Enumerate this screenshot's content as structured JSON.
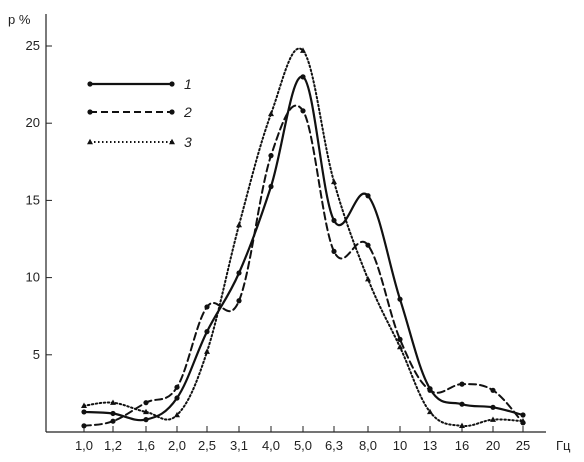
{
  "chart_data": {
    "type": "line",
    "ylabel": "p %",
    "xlabel": "Гц",
    "ylim": [
      0,
      26
    ],
    "categories": [
      "1,0",
      "1,2",
      "1,6",
      "2,0",
      "2,5",
      "3,1",
      "4,0",
      "5,0",
      "6,3",
      "8,0",
      "10",
      "13",
      "16",
      "20",
      "25"
    ],
    "yticks": [
      5,
      10,
      15,
      20,
      25
    ],
    "grid": false,
    "legend": "top-left",
    "series": [
      {
        "name": "1",
        "style": "solid",
        "values": [
          1.3,
          1.2,
          0.8,
          2.2,
          6.5,
          10.3,
          15.9,
          23.0,
          13.7,
          15.3,
          8.6,
          2.8,
          1.8,
          1.6,
          1.1
        ]
      },
      {
        "name": "2",
        "style": "dashed",
        "values": [
          0.4,
          0.7,
          1.9,
          2.9,
          8.1,
          8.5,
          17.9,
          20.8,
          11.7,
          12.1,
          6.0,
          2.7,
          3.1,
          2.7,
          0.6
        ]
      },
      {
        "name": "3",
        "style": "dotted",
        "values": [
          1.7,
          1.9,
          1.3,
          1.1,
          5.2,
          13.4,
          20.6,
          24.7,
          16.2,
          9.9,
          5.5,
          1.3,
          0.4,
          0.8,
          0.7
        ]
      }
    ]
  }
}
